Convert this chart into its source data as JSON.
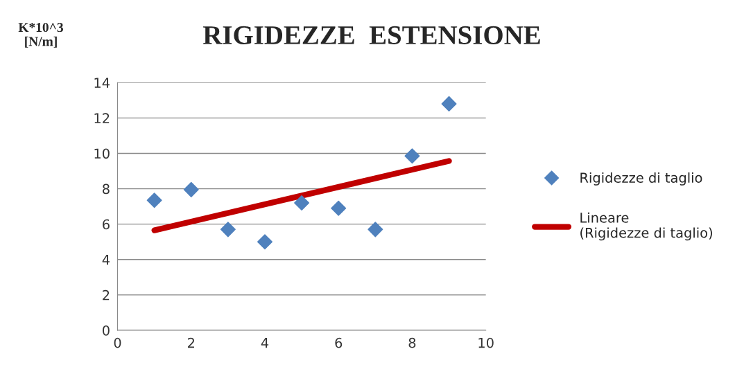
{
  "chart_data": {
    "type": "scatter",
    "title": "RIGIDEZZE  ESTENSIONE",
    "ylabel": "K*10^3\n[N/m]",
    "x": [
      1,
      2,
      3,
      4,
      5,
      6,
      7,
      8,
      9
    ],
    "series": [
      {
        "name": "Rigidezze di taglio",
        "color": "#4f81bd",
        "marker": "diamond",
        "values": [
          7.35,
          7.95,
          5.7,
          5.0,
          7.2,
          6.9,
          5.7,
          9.85,
          12.8
        ]
      },
      {
        "name": "Lineare (Rigidezze di taglio)",
        "color": "#c00000",
        "type": "line",
        "x": [
          1,
          9
        ],
        "values": [
          5.65,
          9.57
        ]
      }
    ],
    "xlim": [
      0,
      10
    ],
    "xticks": [
      0,
      2,
      4,
      6,
      8,
      10
    ],
    "ylim": [
      0,
      14
    ],
    "yticks": [
      0,
      2,
      4,
      6,
      8,
      10,
      12,
      14
    ],
    "grid": "y",
    "legend": "right"
  }
}
